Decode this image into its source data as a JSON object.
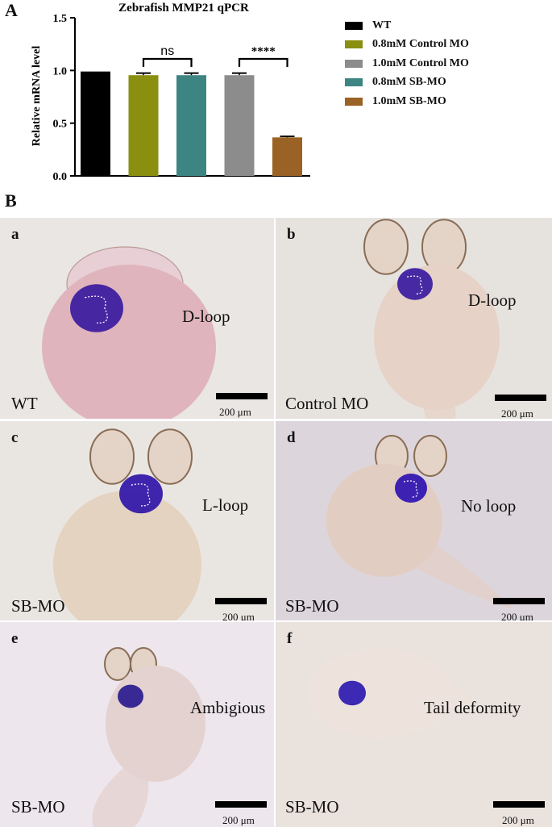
{
  "panel_a_letter": "A",
  "panel_b_letter": "B",
  "chart_data": {
    "type": "bar",
    "title": "Zebrafish MMP21 qPCR",
    "ylabel": "Relative mRNA level",
    "xlabel": "",
    "ylim": [
      0,
      1.5
    ],
    "yticks": [
      "0.0",
      "0.5",
      "1.0",
      "1.5"
    ],
    "ytick_values": [
      0,
      0.5,
      1.0,
      1.5
    ],
    "categories": [
      "WT",
      "0.8mM Control MO",
      "0.8mM SB-MO",
      "1.0mM Control MO",
      "1.0mM SB-MO"
    ],
    "values": [
      0.99,
      0.955,
      0.955,
      0.955,
      0.365
    ],
    "errors": [
      0,
      0.02,
      0.02,
      0.02,
      0.01
    ],
    "colors": [
      "#000000",
      "#8a8f10",
      "#3d8583",
      "#8c8c8c",
      "#9a6224"
    ],
    "significance": [
      {
        "label": "ns",
        "from": 1,
        "to": 2
      },
      {
        "label": "****",
        "from": 3,
        "to": 4
      }
    ],
    "legend": [
      {
        "label": "WT",
        "color": "#000000"
      },
      {
        "label": "0.8mM Control MO",
        "color": "#8a8f10"
      },
      {
        "label": "1.0mM Control MO",
        "color": "#8c8c8c"
      },
      {
        "label": "0.8mM SB-MO",
        "color": "#3d8583"
      },
      {
        "label": "1.0mM SB-MO",
        "color": "#9a6224"
      }
    ],
    "grid": false,
    "legend_position": "right"
  },
  "photos": [
    {
      "letter": "a",
      "annotation": "D-loop",
      "group": "WT",
      "scale": "200 μm",
      "bg": "#e9e6e4",
      "body": "#e0b4bd",
      "heart": "#3a1aa0"
    },
    {
      "letter": "b",
      "annotation": "D-loop",
      "group": "Control MO",
      "scale": "200 μm",
      "bg": "#e6e3df",
      "body": "#e6d2c6",
      "heart": "#3a1aa0"
    },
    {
      "letter": "c",
      "annotation": "L-loop",
      "group": "SB-MO",
      "scale": "200 μm",
      "bg": "#e9e6e2",
      "body": "#e4d3c0",
      "heart": "#3015a8"
    },
    {
      "letter": "d",
      "annotation": "No loop",
      "group": "SB-MO",
      "scale": "200 μm",
      "bg": "#dcd6dc",
      "body": "#e2cdc3",
      "heart": "#2e12b2"
    },
    {
      "letter": "e",
      "annotation": "Ambigious",
      "group": "SB-MO",
      "scale": "200 μm",
      "bg": "#ede6ec",
      "body": "#e3d2cf",
      "heart": "#2a1a90"
    },
    {
      "letter": "f",
      "annotation": "Tail deformity",
      "group": "SB-MO",
      "scale": "200 μm",
      "bg": "#e9e2dd",
      "body": "#ede3dc",
      "heart": "#2d1ab0"
    }
  ]
}
